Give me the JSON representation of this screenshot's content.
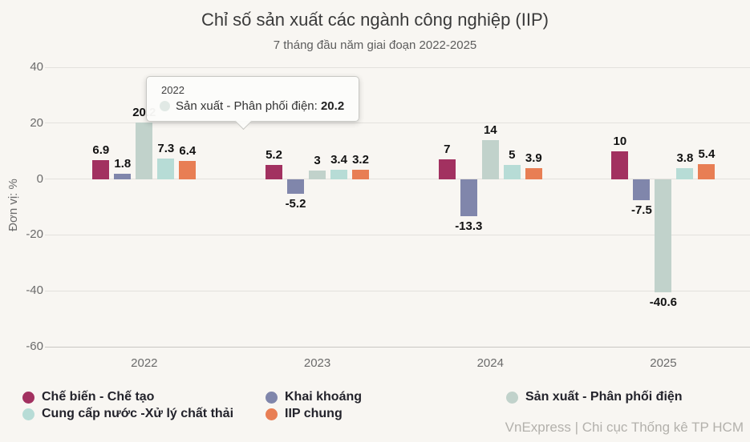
{
  "header": {
    "title": "Chỉ số sản xuất các ngành công nghiệp (IIP)",
    "subtitle": "7 tháng đầu năm giai đoạn 2022-2025"
  },
  "footer": {
    "credit": "VnExpress | Chi cục Thống kê TP HCM"
  },
  "tooltip": {
    "category": "2022",
    "series": "Sản xuất - Phân phối điện",
    "value": "20.2",
    "marker_color": "#c1d2cb"
  },
  "chart_data": {
    "type": "bar",
    "title": "Chỉ số sản xuất các ngành công nghiệp (IIP)",
    "subtitle": "7 tháng đầu năm giai đoạn 2022-2025",
    "xlabel": "",
    "ylabel": "Đơn vị: %",
    "ylim": [
      -60,
      40
    ],
    "yticks": [
      40,
      20,
      0,
      -20,
      -40,
      -60
    ],
    "grid": true,
    "legend_position": "bottom-left",
    "categories": [
      "2022",
      "2023",
      "2024",
      "2025"
    ],
    "series": [
      {
        "name": "Chế biến - Chế tạo",
        "color": "#a23160",
        "values": [
          6.9,
          5.2,
          7,
          10
        ]
      },
      {
        "name": "Khai khoáng",
        "color": "#8086ab",
        "values": [
          1.8,
          -5.2,
          -13.3,
          -7.5
        ]
      },
      {
        "name": "Sản xuất - Phân phối điện",
        "color": "#c1d2cb",
        "values": [
          20.2,
          3,
          14,
          -40.6
        ]
      },
      {
        "name": "Cung cấp nước -Xử lý chất thải",
        "color": "#b7dcd6",
        "values": [
          7.3,
          3.4,
          5,
          3.8
        ]
      },
      {
        "name": "IIP chung",
        "color": "#e87e54",
        "values": [
          6.4,
          3.2,
          3.9,
          5.4
        ]
      }
    ]
  }
}
